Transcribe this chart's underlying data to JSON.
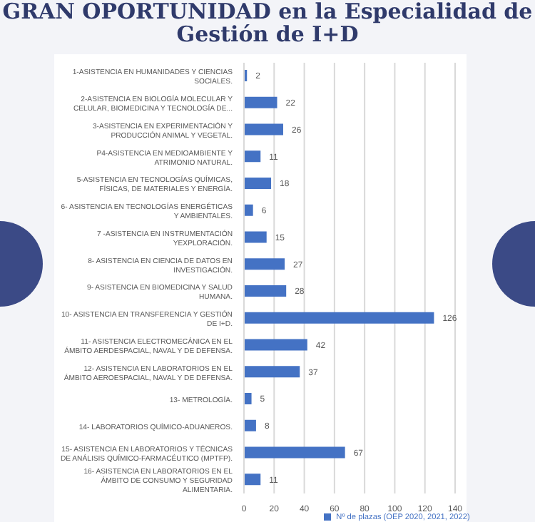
{
  "chart_data": {
    "type": "bar",
    "orientation": "horizontal",
    "title": "GRAN OPORTUNIDAD en la Especialidad de Gestión de I+D",
    "categories": [
      "1-ASISTENCIA EN HUMANIDADES Y CIENCIAS SOCIALES.",
      "2-ASISTENCIA EN BIOLOGÍA MOLECULAR Y CELULAR, BIOMEDICINA Y TECNOLOGÍA DE...",
      "3-ASISTENCIA EN EXPERIMENTACIÓN Y PRODUCCIÓN ANIMAL Y VEGETAL.",
      "P4-ASISTENCIA EN MEDIOAMBIENTE Y ATRIMONIO NATURAL.",
      "5-ASISTENCIA EN TECNOLOGÍAS QUÍMICAS, FÍSICAS, DE MATERIALES Y ENERGÍA.",
      "6- ASISTENCIA EN TECNOLOGÍAS ENERGÉTICAS Y AMBIENTALES.",
      "7 -ASISTENCIA EN INSTRUMENTACIÓN YEXPLORACIÓN.",
      "8- ASISTENCIA EN CIENCIA DE DATOS EN INVESTIGACIÓN.",
      "9- ASISTENCIA EN BIOMEDICINA Y SALUD HUMANA.",
      "10- ASISTENCIA EN TRANSFERENCIA Y GESTIÓN DE I+D.",
      "11- ASISTENCIA ELECTROMECÁNICA EN EL ÁMBITO AERDESPACIAL, NAVAL Y DE DEFENSA.",
      "12- ASISTENCIA EN LABORATORIOS EN EL ÁMBITO AEROESPACIAL, NAVAL Y DE DEFENSA.",
      "13- METROLOGÍA.",
      "14- LABORATORIOS QUÍMICO-ADUANEROS.",
      "15- ASISTENCIA EN LABORATORIOS Y TÉCNICAS DE ANÁLISIS QUÍMICO-FARMACÉUTICO (MPTFP).",
      "16- ASISTENCIA EN LABORATORIOS EN EL ÁMBITO DE CONSUMO Y SEGURIDAD ALIMENTARIA."
    ],
    "series": [
      {
        "name": "Nº de plazas (OEP 2020, 2021, 2022)",
        "color": "#4472c4",
        "values": [
          2,
          22,
          26,
          11,
          18,
          6,
          15,
          27,
          28,
          126,
          42,
          37,
          5,
          8,
          67,
          11
        ]
      }
    ],
    "xlim": [
      0,
      140
    ],
    "xticks": [
      0,
      20,
      40,
      60,
      80,
      100,
      120,
      140
    ],
    "grid": "x",
    "legend": "bottom",
    "data_labels": true
  }
}
